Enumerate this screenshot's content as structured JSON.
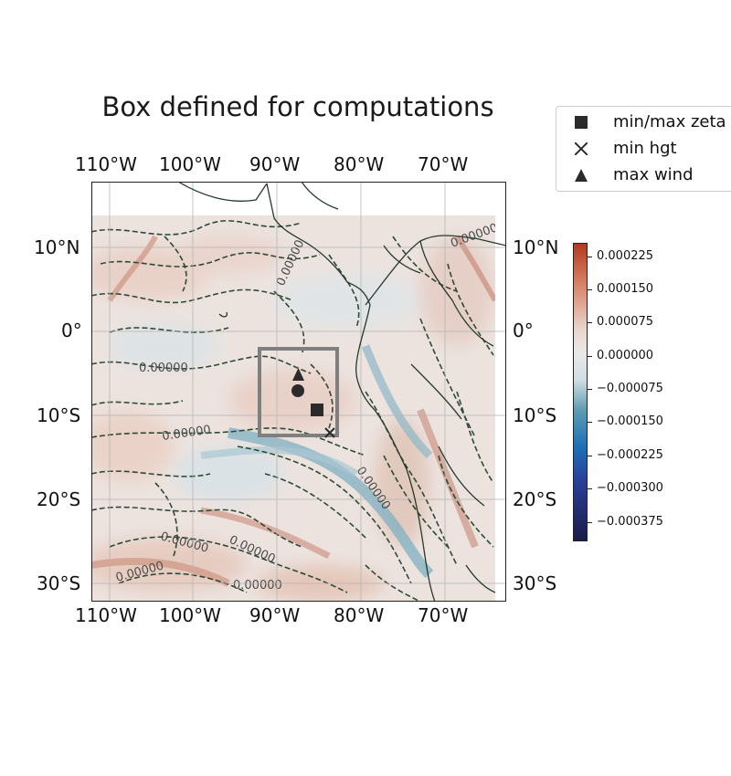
{
  "title": "Box defined for computations",
  "longitude_labels": [
    "110°W",
    "100°W",
    "90°W",
    "80°W",
    "70°W"
  ],
  "latitude_labels": [
    "10°N",
    "0°",
    "10°S",
    "20°S",
    "30°S"
  ],
  "contour_label": "0.00000",
  "legend": {
    "items": [
      {
        "label": "min/max zeta",
        "symbol": "square-marker"
      },
      {
        "label": "min hgt",
        "symbol": "x-marker"
      },
      {
        "label": "max wind",
        "symbol": "triangle-marker"
      }
    ]
  },
  "colorbar": {
    "ticks": [
      "0.000225",
      "0.000150",
      "0.000075",
      "0.000000",
      "−0.000075",
      "−0.000150",
      "−0.000225",
      "−0.000300",
      "−0.000375"
    ]
  },
  "colors": {
    "positive": "#c87a64",
    "neutral": "#e8e8e8",
    "negative": "#6fa3b8",
    "marker": "#2b2b2b",
    "box": "#7f7f7f",
    "coast": "#243b2a"
  }
}
